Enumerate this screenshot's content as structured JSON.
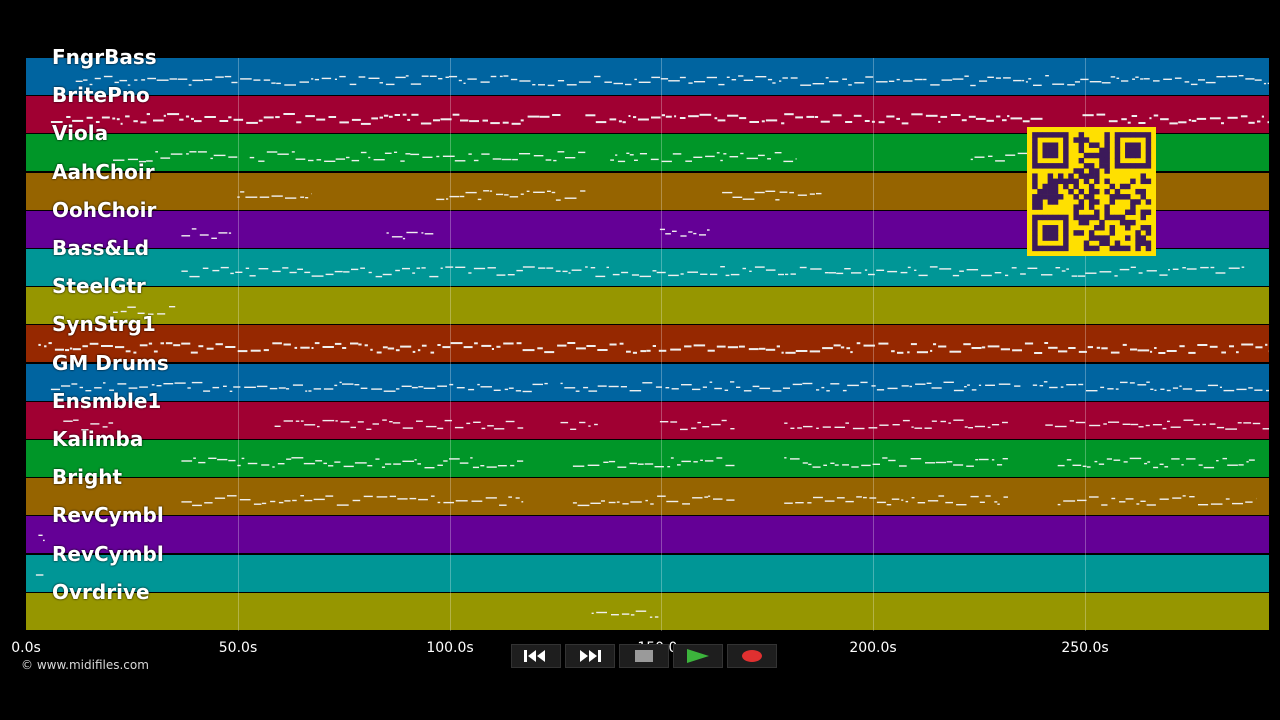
{
  "tracks": [
    {
      "name": "FngrBass",
      "color": "#0064a0"
    },
    {
      "name": "BritePno",
      "color": "#a00032"
    },
    {
      "name": "Viola",
      "color": "#009628"
    },
    {
      "name": "AahChoir",
      "color": "#966400"
    },
    {
      "name": "OohChoir",
      "color": "#640096"
    },
    {
      "name": "Bass&Ld",
      "color": "#009696"
    },
    {
      "name": "SteelGtr",
      "color": "#969600"
    },
    {
      "name": "SynStrg1",
      "color": "#962800"
    },
    {
      "name": "GM Drums",
      "color": "#0064a0"
    },
    {
      "name": "Ensmble1",
      "color": "#a00032"
    },
    {
      "name": "Kalimba",
      "color": "#009628"
    },
    {
      "name": "Bright",
      "color": "#966400"
    },
    {
      "name": "RevCymbl",
      "color": "#640096"
    },
    {
      "name": "RevCymbl",
      "color": "#009696"
    },
    {
      "name": "Ovrdrive",
      "color": "#969600"
    }
  ],
  "timeline": {
    "ticks": [
      {
        "label": "0.0s",
        "value": 0
      },
      {
        "label": "50.0s",
        "value": 50
      },
      {
        "label": "100.0s",
        "value": 100
      },
      {
        "label": "150.0s",
        "value": 150
      },
      {
        "label": "200.0s",
        "value": 200
      },
      {
        "label": "250.0s",
        "value": 250
      }
    ],
    "max_seconds": 293.5
  },
  "copyright": "© www.midifiles.com",
  "transport": {
    "rewind_icon": "rewind-icon",
    "fast_forward_icon": "fast-forward-icon",
    "stop_icon": "stop-icon",
    "play_icon": "play-icon",
    "record_icon": "record-icon",
    "play_color": "#3cb43c",
    "record_color": "#e03030"
  },
  "qr_code": {
    "color": "#ffe000",
    "dark": "#3c1a5a"
  }
}
